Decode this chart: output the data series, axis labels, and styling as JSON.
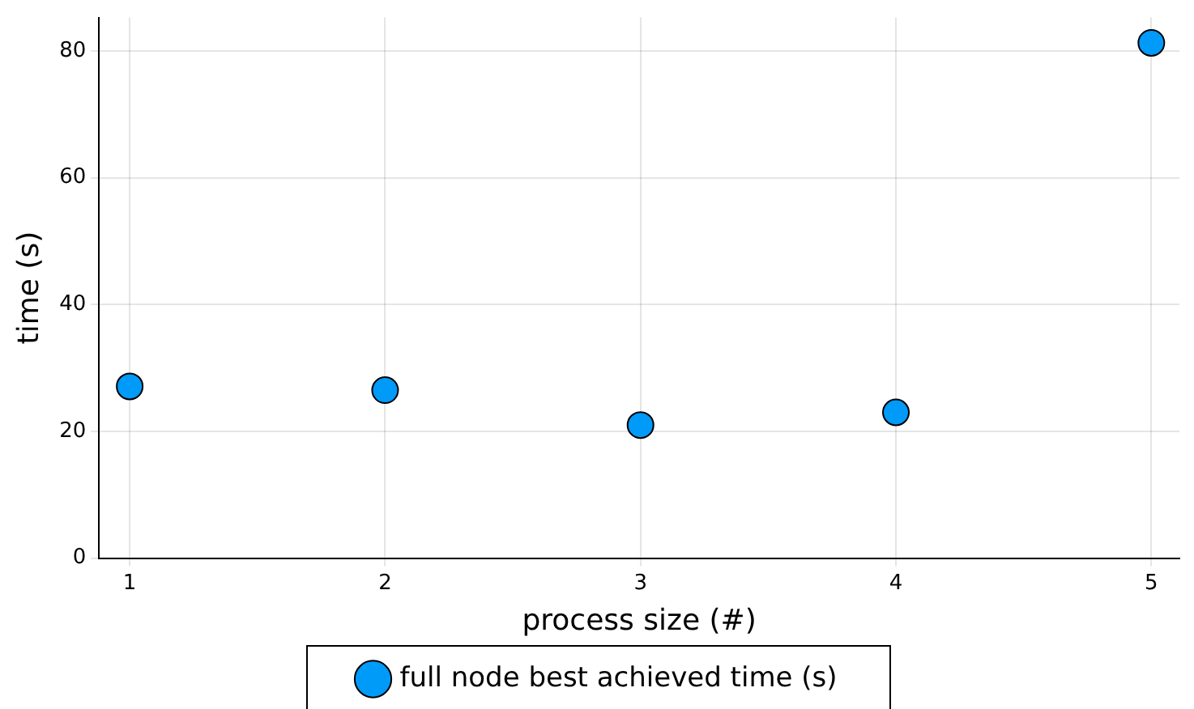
{
  "chart_data": {
    "type": "scatter",
    "xlabel": "process size (#)",
    "ylabel": "time (s)",
    "x": [
      1,
      2,
      3,
      4,
      5
    ],
    "series": [
      {
        "name": "full node best achieved time (s)",
        "color": "#009af9",
        "values": [
          27.1,
          26.5,
          21.0,
          23.0,
          81.3
        ]
      }
    ],
    "xlim": [
      0.88,
      5.11
    ],
    "xticks": [
      1,
      2,
      3,
      4,
      5
    ],
    "ylim": [
      0,
      85.3
    ],
    "yticks": [
      0,
      20,
      40,
      60,
      80
    ],
    "grid": true,
    "legend": "bottom",
    "marker": "circle"
  }
}
